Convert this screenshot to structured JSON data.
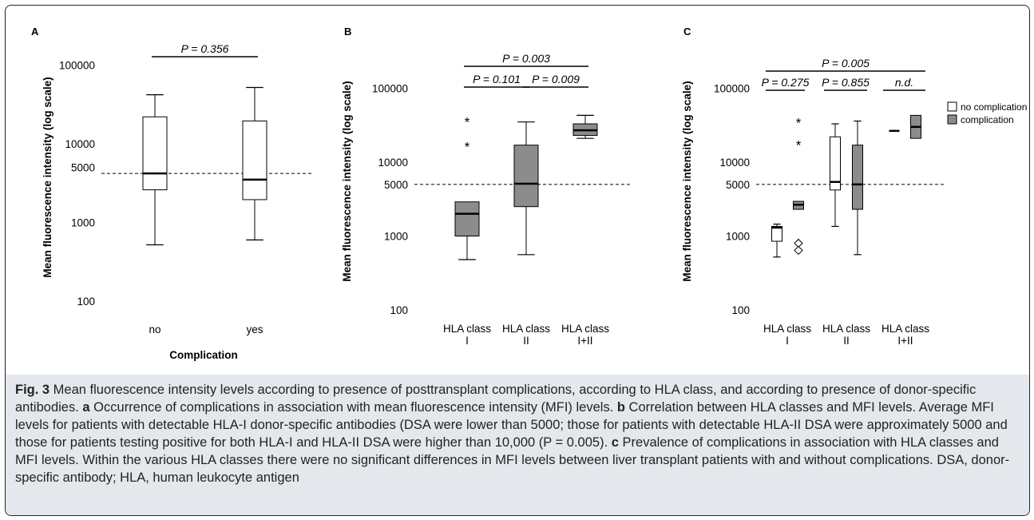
{
  "figure_label": "Fig. 3",
  "caption": {
    "lead": " Mean fluorescence intensity levels according to presence of posttransplant complications, according to HLA class, and according to presence of donor-specific antibodies. ",
    "a_label": "a",
    "a_text": " Occurrence of complications in association with mean fluorescence intensity (MFI) levels. ",
    "b_label": "b",
    "b_text": " Correlation between HLA classes and MFI levels. Average MFI levels for patients with detectable HLA-I donor-specific antibodies (DSA were lower than 5000; those for patients with detectable HLA-II DSA were approximately 5000 and those for patients testing positive for both HLA-I and HLA-II DSA were higher than 10,000 (P = 0.005). ",
    "c_label": "c",
    "c_text": " Prevalence of complications in association with HLA classes and MFI levels. Within the various HLA classes there were no significant differences in MFI levels between liver transplant patients with and without complications. DSA, donor-specific antibody; HLA, human leukocyte antigen"
  },
  "colors": {
    "box_white": "#ffffff",
    "box_gray": "#8c8c8c",
    "line": "#000000",
    "caption_bg": "#e4e8ec"
  },
  "chart_data": [
    {
      "panel": "A",
      "type": "box",
      "yscale": "log",
      "ylabel": "Mean fluorescence intensity (log scale)",
      "xlabel": "Complication",
      "y_ticks": [
        "100",
        "1000",
        "5000",
        "10000",
        "100000"
      ],
      "y_tick_values": [
        100,
        1000,
        5000,
        10000,
        100000
      ],
      "reference_line": 4200,
      "categories": [
        [
          "no"
        ],
        [
          "yes"
        ]
      ],
      "boxes": [
        {
          "group": "no",
          "fill": "white",
          "min": 520,
          "q1": 2600,
          "median": 4200,
          "q3": 22000,
          "max": 42000
        },
        {
          "group": "yes",
          "fill": "white",
          "min": 600,
          "q1": 1950,
          "median": 3500,
          "q3": 19500,
          "max": 52000
        }
      ],
      "outliers": [],
      "brackets": [
        {
          "from": 0,
          "to": 1,
          "label": "P = 0.356",
          "level": 0
        }
      ]
    },
    {
      "panel": "B",
      "type": "box",
      "yscale": "log",
      "ylabel": "Mean fluorescence intensity (log scale)",
      "xlabel": "",
      "y_ticks": [
        "100",
        "1000",
        "5000",
        "10000",
        "100000"
      ],
      "y_tick_values": [
        100,
        1000,
        5000,
        10000,
        100000
      ],
      "reference_line": 5000,
      "categories": [
        [
          "HLA class",
          "I"
        ],
        [
          "HLA class",
          "II"
        ],
        [
          "HLA class",
          "I+II"
        ]
      ],
      "boxes": [
        {
          "group": "HLA class I",
          "fill": "gray",
          "min": 480,
          "q1": 1000,
          "median": 2000,
          "q3": 2900,
          "max": 2900
        },
        {
          "group": "HLA class II",
          "fill": "gray",
          "min": 560,
          "q1": 2500,
          "median": 5100,
          "q3": 17000,
          "max": 35000
        },
        {
          "group": "HLA class I+II",
          "fill": "gray",
          "min": 21000,
          "q1": 23000,
          "median": 27000,
          "q3": 33000,
          "max": 43000
        }
      ],
      "outliers": [
        {
          "group": 0,
          "value": 37000,
          "marker": "*"
        },
        {
          "group": 0,
          "value": 17000,
          "marker": "*"
        }
      ],
      "brackets": [
        {
          "from": 0,
          "to": 1,
          "label": "P = 0.101",
          "level": 0
        },
        {
          "from": 1,
          "to": 2,
          "label": "P = 0.009",
          "level": 0
        },
        {
          "from": 0,
          "to": 2,
          "label": "P = 0.003",
          "level": 1
        }
      ]
    },
    {
      "panel": "C",
      "type": "box",
      "yscale": "log",
      "ylabel": "Mean fluorescence intensity (log scale)",
      "xlabel": "",
      "y_ticks": [
        "100",
        "1000",
        "5000",
        "10000",
        "100000"
      ],
      "y_tick_values": [
        100,
        1000,
        5000,
        10000,
        100000
      ],
      "reference_line": 5000,
      "categories": [
        [
          "HLA class",
          "I"
        ],
        [
          "HLA class",
          "II"
        ],
        [
          "HLA class",
          "I+II"
        ]
      ],
      "legend": {
        "position": "top-right",
        "entries": [
          {
            "label": "no complication",
            "fill": "white"
          },
          {
            "label": "complication",
            "fill": "gray"
          }
        ]
      },
      "boxes": [
        {
          "group": "HLA class I",
          "series": "no complication",
          "fill": "white",
          "min": 520,
          "q1": 850,
          "median": 1300,
          "q3": 1350,
          "max": 1450
        },
        {
          "group": "HLA class I",
          "series": "complication",
          "fill": "gray",
          "min": 2300,
          "q1": 2300,
          "median": 2650,
          "q3": 2950,
          "max": 2950
        },
        {
          "group": "HLA class II",
          "series": "no complication",
          "fill": "white",
          "min": 1350,
          "q1": 4200,
          "median": 5400,
          "q3": 22000,
          "max": 33000
        },
        {
          "group": "HLA class II",
          "series": "complication",
          "fill": "gray",
          "min": 560,
          "q1": 2300,
          "median": 5000,
          "q3": 17000,
          "max": 36000
        },
        {
          "group": "HLA class I+II",
          "series": "no complication",
          "fill": "white",
          "min": 26500,
          "q1": 26500,
          "median": 26500,
          "q3": 26500,
          "max": 26500
        },
        {
          "group": "HLA class I+II",
          "series": "complication",
          "fill": "gray",
          "min": 21000,
          "q1": 21000,
          "median": 30000,
          "q3": 43000,
          "max": 43000
        }
      ],
      "outliers": [
        {
          "box": 1,
          "value": 36000,
          "marker": "*"
        },
        {
          "box": 1,
          "value": 18000,
          "marker": "*"
        },
        {
          "box": 1,
          "value": 800,
          "marker": "diamond"
        },
        {
          "box": 1,
          "value": 640,
          "marker": "diamond"
        }
      ],
      "brackets": [
        {
          "from": 0,
          "to": 0,
          "label": "P = 0.275",
          "level": 0
        },
        {
          "from": 1,
          "to": 1,
          "label": "P = 0.855",
          "level": 0
        },
        {
          "from": 2,
          "to": 2,
          "label": "n.d.",
          "level": 0
        },
        {
          "from": 0,
          "to": 2,
          "label": "P = 0.005",
          "level": 1
        }
      ]
    }
  ]
}
